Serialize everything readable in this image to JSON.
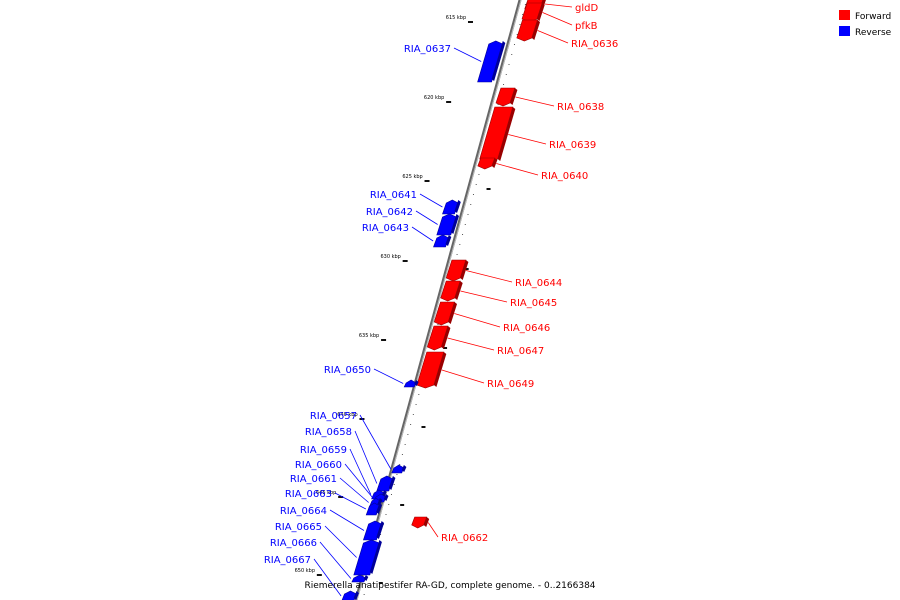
{
  "legend": {
    "items": [
      {
        "label": "Forward",
        "color": "#ff0000"
      },
      {
        "label": "Reverse",
        "color": "#0000ff"
      }
    ]
  },
  "caption": "Riemerella anatipestifer RA-GD, complete genome. - 0..2166384",
  "colors": {
    "forward": "#ff0000",
    "reverse": "#0000ff",
    "backbone": "#777777"
  },
  "ticks": [
    {
      "label": "615 kbp"
    },
    {
      "label": "620 kbp"
    },
    {
      "label": "625 kbp"
    },
    {
      "label": "630 kbp"
    },
    {
      "label": "635 kbp"
    },
    {
      "label": "640 kbp"
    },
    {
      "label": "645 kbp"
    },
    {
      "label": "650 kbp"
    }
  ],
  "genes": [
    {
      "name": "gldD",
      "strand": "forward"
    },
    {
      "name": "pfkB",
      "strand": "forward"
    },
    {
      "name": "RIA_0636",
      "strand": "forward"
    },
    {
      "name": "RIA_0637",
      "strand": "reverse"
    },
    {
      "name": "RIA_0638",
      "strand": "forward"
    },
    {
      "name": "RIA_0639",
      "strand": "forward"
    },
    {
      "name": "RIA_0640",
      "strand": "forward"
    },
    {
      "name": "RIA_0641",
      "strand": "reverse"
    },
    {
      "name": "RIA_0642",
      "strand": "reverse"
    },
    {
      "name": "RIA_0643",
      "strand": "reverse"
    },
    {
      "name": "RIA_0644",
      "strand": "forward"
    },
    {
      "name": "RIA_0645",
      "strand": "forward"
    },
    {
      "name": "RIA_0646",
      "strand": "forward"
    },
    {
      "name": "RIA_0647",
      "strand": "forward"
    },
    {
      "name": "RIA_0649",
      "strand": "forward"
    },
    {
      "name": "RIA_0650",
      "strand": "reverse"
    },
    {
      "name": "RIA_0657",
      "strand": "reverse"
    },
    {
      "name": "RIA_0658",
      "strand": "reverse"
    },
    {
      "name": "RIA_0659",
      "strand": "reverse"
    },
    {
      "name": "RIA_0660",
      "strand": "reverse"
    },
    {
      "name": "RIA_0661",
      "strand": "reverse"
    },
    {
      "name": "RIA_0663",
      "strand": "reverse"
    },
    {
      "name": "RIA_0664",
      "strand": "reverse"
    },
    {
      "name": "RIA_0665",
      "strand": "reverse"
    },
    {
      "name": "RIA_0666",
      "strand": "reverse"
    },
    {
      "name": "RIA_0667",
      "strand": "reverse"
    },
    {
      "name": "RIA_0662",
      "strand": "forward"
    }
  ]
}
